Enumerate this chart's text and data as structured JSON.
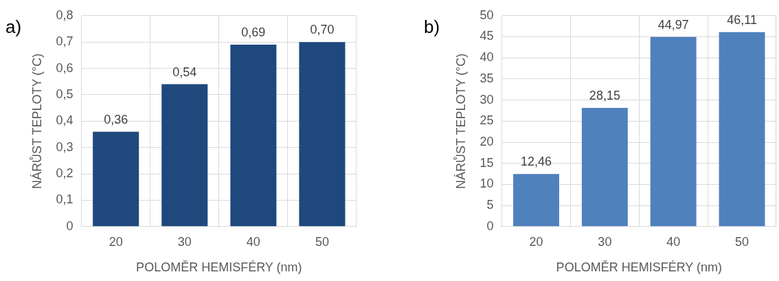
{
  "chart_data": [
    {
      "type": "bar",
      "title": "a)",
      "xlabel": "POLOMĚR HEMISFÉRY (nm)",
      "ylabel": "NÁRŮST TEPLOTY (°C)",
      "categories": [
        "20",
        "30",
        "40",
        "50"
      ],
      "values": [
        0.36,
        0.54,
        0.69,
        0.7
      ],
      "value_labels": [
        "0,36",
        "0,54",
        "0,69",
        "0,70"
      ],
      "color": "#1f497d",
      "ylim": [
        0,
        0.8
      ],
      "yticks": [
        0,
        {
          "value": 0.1,
          "label": "0,1"
        },
        {
          "value": 0.2,
          "label": "0,2"
        },
        {
          "value": 0.3,
          "label": "0,3"
        },
        {
          "value": 0.4,
          "label": "0,4"
        },
        {
          "value": 0.5,
          "label": "0,5"
        },
        {
          "value": 0.6,
          "label": "0,6"
        },
        {
          "value": 0.7,
          "label": "0,7"
        },
        {
          "value": 0.8,
          "label": "0,8"
        }
      ],
      "grid": true
    },
    {
      "type": "bar",
      "title": "b)",
      "xlabel": "POLOMĚR HEMISFÉRY (nm)",
      "ylabel": "NÁRŮST TEPLOTY (°C)",
      "categories": [
        "20",
        "30",
        "40",
        "50"
      ],
      "values": [
        12.46,
        28.15,
        44.97,
        46.11
      ],
      "value_labels": [
        "12,46",
        "28,15",
        "44,97",
        "46,11"
      ],
      "color": "#4f81bd",
      "ylim": [
        0,
        50
      ],
      "yticks": [
        0,
        5,
        10,
        15,
        20,
        25,
        30,
        35,
        40,
        45,
        50
      ],
      "grid": true
    }
  ]
}
